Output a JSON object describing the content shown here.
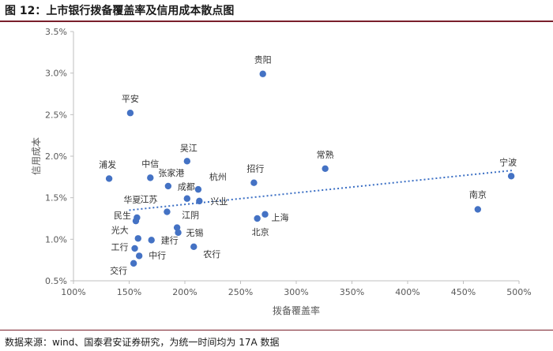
{
  "header": {
    "title": "图 12：上市银行拨备覆盖率及信用成本散点图"
  },
  "footer": {
    "source": "数据来源：wind、国泰君安证券研究，为统一时间均为 17A 数据"
  },
  "colors": {
    "point": "#4472c4",
    "trend": "#3b6fc4",
    "axis": "#bfbfbf",
    "text": "#595959",
    "rule": "#7a1f2b"
  },
  "chart_data": {
    "type": "scatter",
    "xlabel": "拨备覆盖率",
    "ylabel": "信用成本",
    "xlim": [
      1.0,
      5.0
    ],
    "ylim": [
      0.005,
      0.035
    ],
    "x_ticks": [
      {
        "value": 1.0,
        "label": "100%"
      },
      {
        "value": 1.5,
        "label": "150%"
      },
      {
        "value": 2.0,
        "label": "200%"
      },
      {
        "value": 2.5,
        "label": "250%"
      },
      {
        "value": 3.0,
        "label": "300%"
      },
      {
        "value": 3.5,
        "label": "350%"
      },
      {
        "value": 4.0,
        "label": "400%"
      },
      {
        "value": 4.5,
        "label": "450%"
      },
      {
        "value": 5.0,
        "label": "500%"
      }
    ],
    "y_ticks": [
      {
        "value": 0.005,
        "label": "0.5%"
      },
      {
        "value": 0.01,
        "label": "1.0%"
      },
      {
        "value": 0.015,
        "label": "1.5%"
      },
      {
        "value": 0.02,
        "label": "2.0%"
      },
      {
        "value": 0.025,
        "label": "2.5%"
      },
      {
        "value": 0.03,
        "label": "3.0%"
      },
      {
        "value": 0.035,
        "label": "3.5%"
      }
    ],
    "grid": false,
    "trendline": {
      "style": "dotted",
      "x": [
        1.5,
        4.95
      ],
      "y": [
        0.0135,
        0.0183
      ]
    },
    "points": [
      {
        "label": "贵阳",
        "x": 2.7,
        "y": 0.0299
      },
      {
        "label": "平安",
        "x": 1.51,
        "y": 0.0252
      },
      {
        "label": "吴江",
        "x": 2.02,
        "y": 0.0194
      },
      {
        "label": "中信",
        "x": 1.69,
        "y": 0.0174
      },
      {
        "label": "浦发",
        "x": 1.32,
        "y": 0.0173
      },
      {
        "label": "张家港",
        "x": 1.85,
        "y": 0.0164
      },
      {
        "label": "杭州",
        "x": 2.12,
        "y": 0.016
      },
      {
        "label": "成都",
        "x": 2.02,
        "y": 0.0149
      },
      {
        "label": "招行",
        "x": 2.62,
        "y": 0.0168
      },
      {
        "label": "常熟",
        "x": 3.26,
        "y": 0.0185
      },
      {
        "label": "宁波",
        "x": 4.93,
        "y": 0.0176
      },
      {
        "label": "南京",
        "x": 4.63,
        "y": 0.0136
      },
      {
        "label": "华夏",
        "x": 1.57,
        "y": 0.0126
      },
      {
        "label": "江苏",
        "x": 1.84,
        "y": 0.0133
      },
      {
        "label": "兴业",
        "x": 2.13,
        "y": 0.0146
      },
      {
        "label": "民生",
        "x": 1.56,
        "y": 0.0122
      },
      {
        "label": "江阴",
        "x": 1.93,
        "y": 0.0114
      },
      {
        "label": "无锡",
        "x": 1.94,
        "y": 0.0108
      },
      {
        "label": "建行",
        "x": 1.7,
        "y": 0.0099
      },
      {
        "label": "光大",
        "x": 1.58,
        "y": 0.0101
      },
      {
        "label": "北京",
        "x": 2.65,
        "y": 0.0125
      },
      {
        "label": "上海",
        "x": 2.72,
        "y": 0.013
      },
      {
        "label": "工行",
        "x": 1.55,
        "y": 0.0089
      },
      {
        "label": "中行",
        "x": 1.59,
        "y": 0.008
      },
      {
        "label": "农行",
        "x": 2.08,
        "y": 0.0091
      },
      {
        "label": "交行",
        "x": 1.54,
        "y": 0.0071
      }
    ]
  }
}
